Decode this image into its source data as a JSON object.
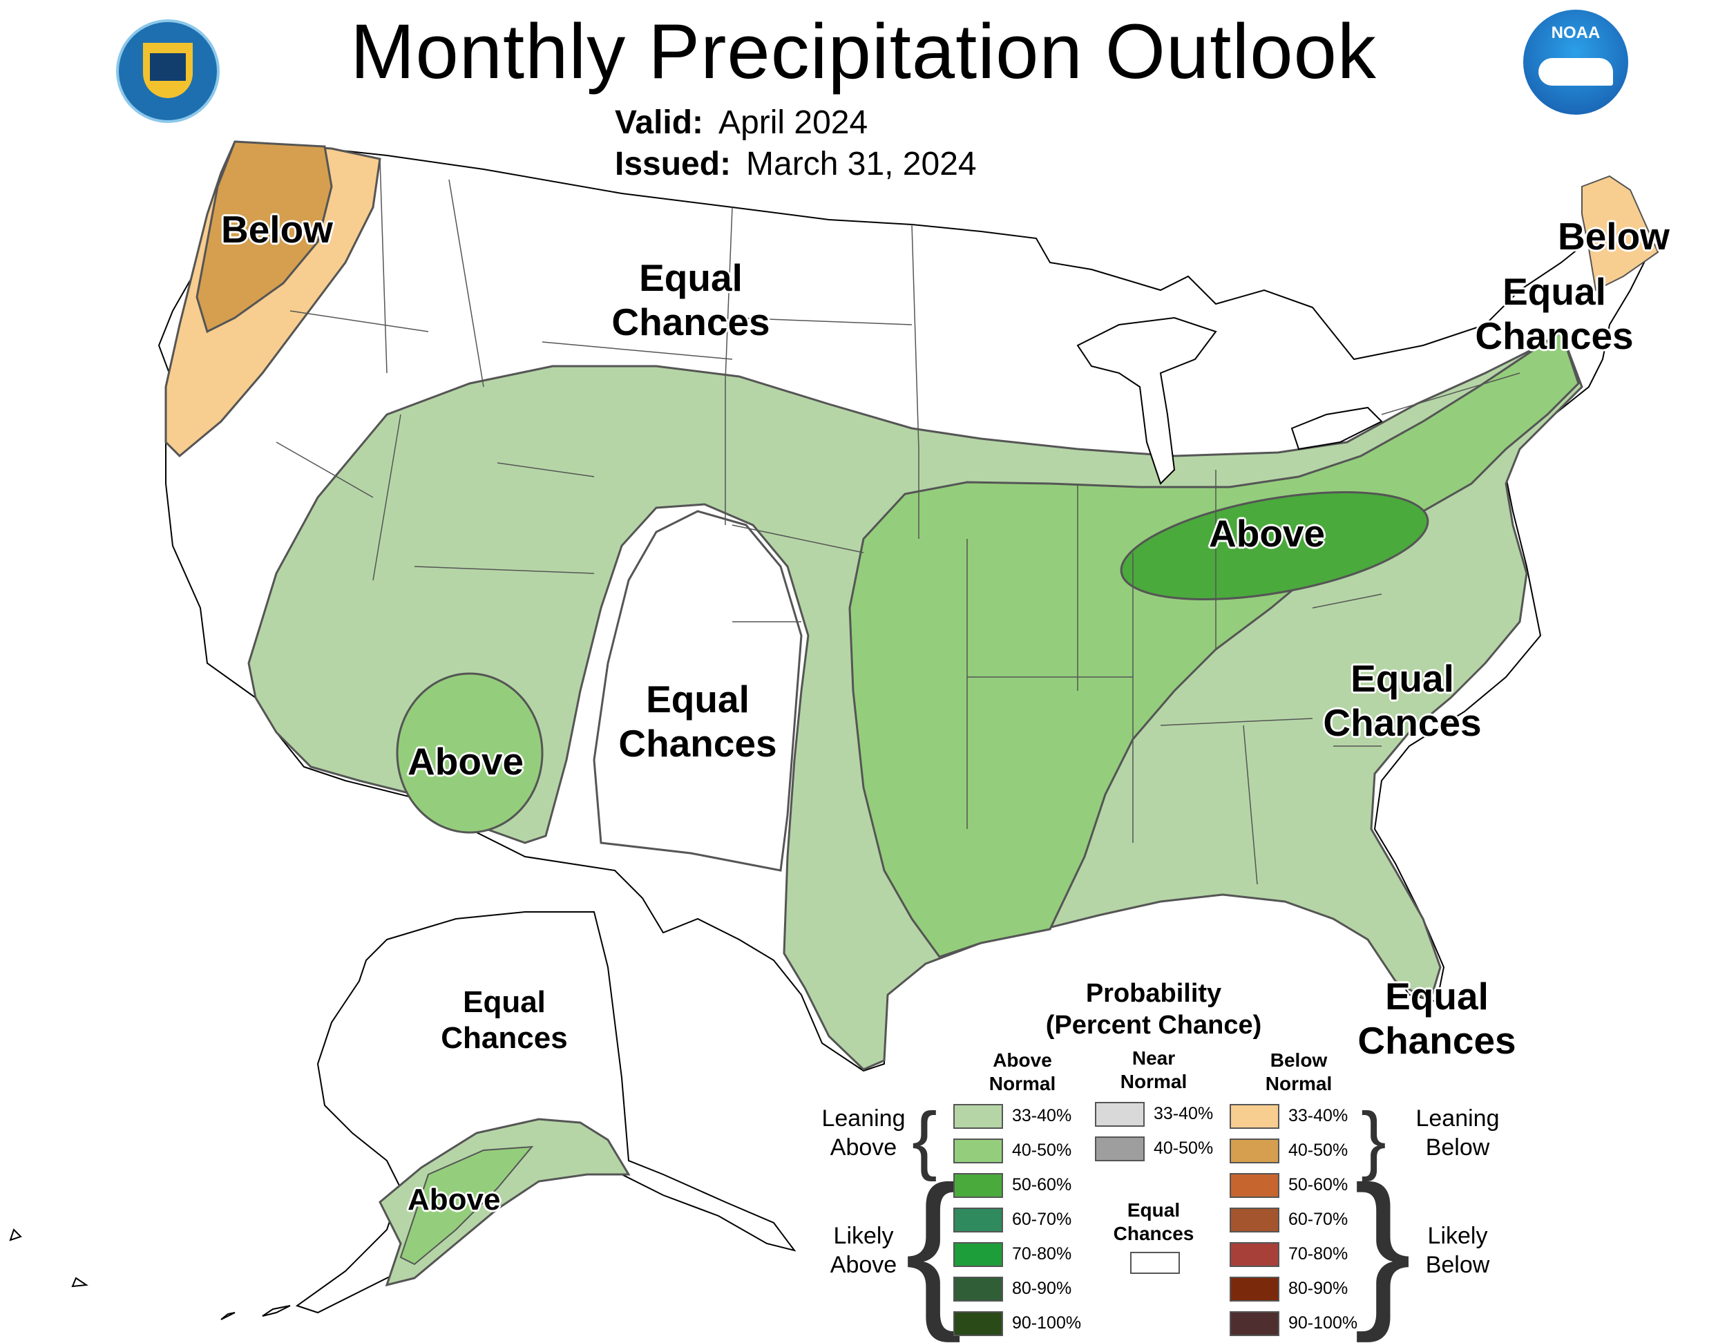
{
  "header": {
    "title": "Monthly Precipitation Outlook",
    "valid_label": "Valid:",
    "valid_value": "April 2024",
    "issued_label": "Issued:",
    "issued_value": "March 31, 2024"
  },
  "map_labels": {
    "pnw": "Below",
    "north_plains": [
      "Equal",
      "Chances"
    ],
    "ohio_valley": "Above",
    "southwest": "Above",
    "south_plains": [
      "Equal",
      "Chances"
    ],
    "carolinas": [
      "Equal",
      "Chances"
    ],
    "northeast": [
      "Equal",
      "Chances"
    ],
    "maine": "Below",
    "florida": [
      "Equal",
      "Chances"
    ],
    "alaska_interior": [
      "Equal",
      "Chances"
    ],
    "alaska_south": "Above"
  },
  "legend": {
    "title_line1": "Probability",
    "title_line2": "(Percent Chance)",
    "col_above": [
      "Above",
      "Normal"
    ],
    "col_near": [
      "Near",
      "Normal"
    ],
    "col_below": [
      "Below",
      "Normal"
    ],
    "leaning_above": [
      "Leaning",
      "Above"
    ],
    "likely_above": [
      "Likely",
      "Above"
    ],
    "leaning_below": [
      "Leaning",
      "Below"
    ],
    "likely_below": [
      "Likely",
      "Below"
    ],
    "equal_chances": [
      "Equal",
      "Chances"
    ],
    "above": [
      {
        "label": "33-40%",
        "color": "#b5d5a6"
      },
      {
        "label": "40-50%",
        "color": "#94ce7c"
      },
      {
        "label": "50-60%",
        "color": "#4aaa3c"
      },
      {
        "label": "60-70%",
        "color": "#2f8a5e"
      },
      {
        "label": "70-80%",
        "color": "#1e9e3a"
      },
      {
        "label": "80-90%",
        "color": "#2f5e37"
      },
      {
        "label": "90-100%",
        "color": "#2a4a18"
      }
    ],
    "near": [
      {
        "label": "33-40%",
        "color": "#d9d9d9"
      },
      {
        "label": "40-50%",
        "color": "#9e9e9e"
      }
    ],
    "below": [
      {
        "label": "33-40%",
        "color": "#f7cd90"
      },
      {
        "label": "40-50%",
        "color": "#d59f4f"
      },
      {
        "label": "50-60%",
        "color": "#c7652e"
      },
      {
        "label": "60-70%",
        "color": "#a4552d"
      },
      {
        "label": "70-80%",
        "color": "#a8403a"
      },
      {
        "label": "80-90%",
        "color": "#7a2a0a"
      },
      {
        "label": "90-100%",
        "color": "#4e2e2e"
      }
    ],
    "equal_color": "#ffffff"
  },
  "logos": {
    "left": "department-of-commerce-seal",
    "right": "noaa-logo",
    "noaa_text": "NOAA"
  }
}
